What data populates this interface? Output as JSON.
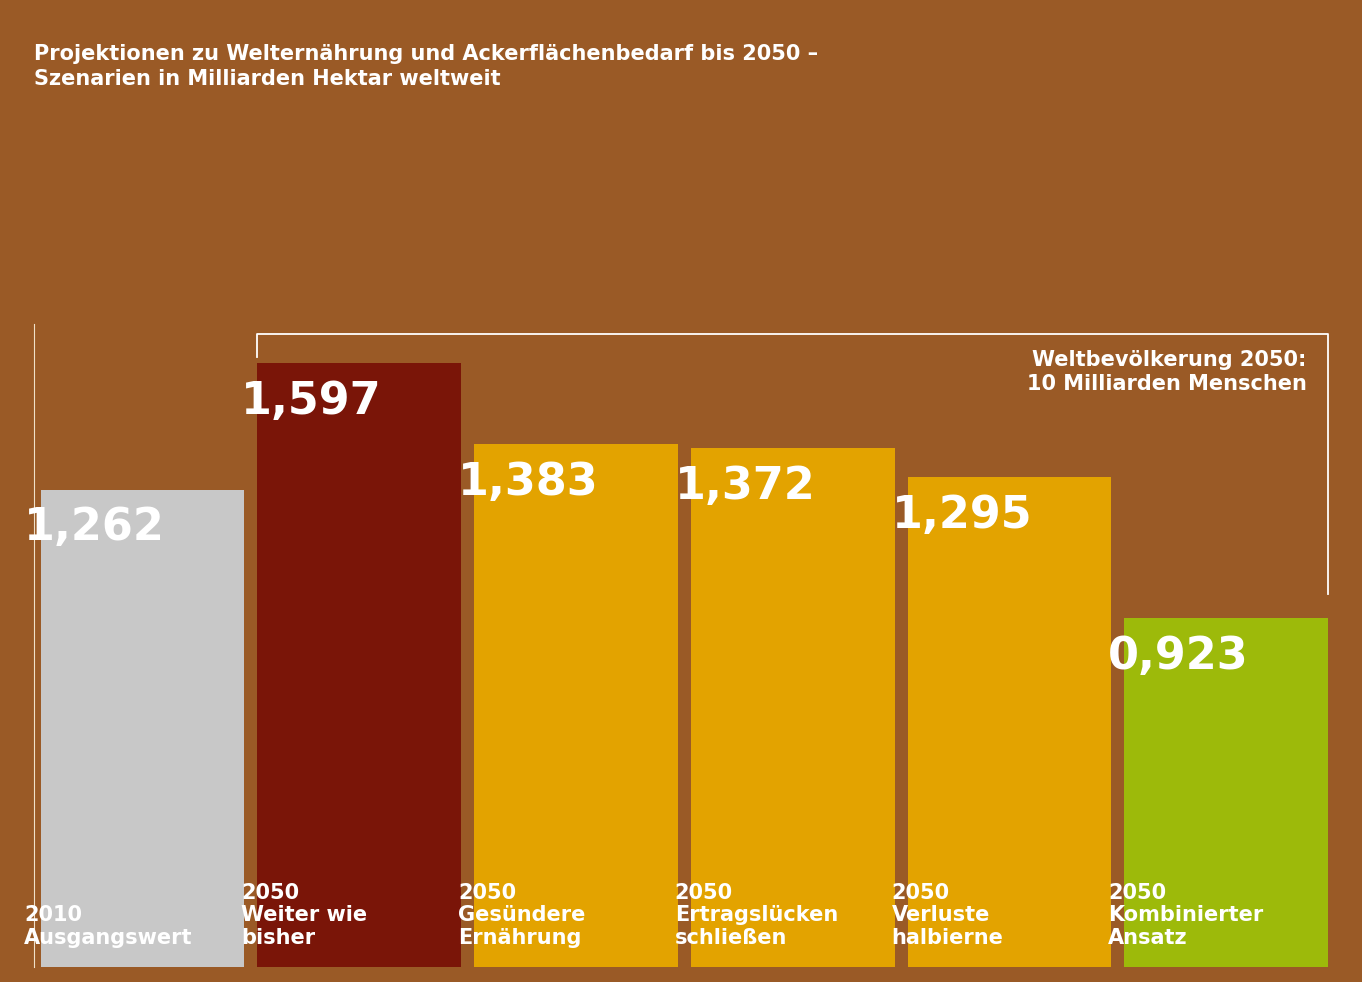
{
  "chart_data": {
    "type": "bar",
    "title": "Projektionen zu Welternährung und Ackerflächenbedarf bis 2050 –\nSzenarien in Milliarden Hektar weltweit",
    "categories": [
      "2010\nAusgangswert",
      "2050\nWeiter wie\nbisher",
      "2050\nGesündere\nErnährung",
      "2050\nErtragslücken\nschließen",
      "2050\nVerluste\nhalbierne",
      "2050\nKombinierter\nAnsatz"
    ],
    "values": [
      1.262,
      1.597,
      1.383,
      1.372,
      1.295,
      0.923
    ],
    "value_labels": [
      "1,262",
      "1,597",
      "1,383",
      "1,372",
      "1,295",
      "0,923"
    ],
    "colors": [
      "#c8c8c8",
      "#7a1508",
      "#e3a300",
      "#e3a300",
      "#e3a300",
      "#9dba0a"
    ],
    "annotation": "Weltbevölkerung 2050:\n10 Milliarden Menschen",
    "ylim": [
      0,
      1.7
    ],
    "data_labels": true,
    "tick_labels": false,
    "grid": false
  }
}
